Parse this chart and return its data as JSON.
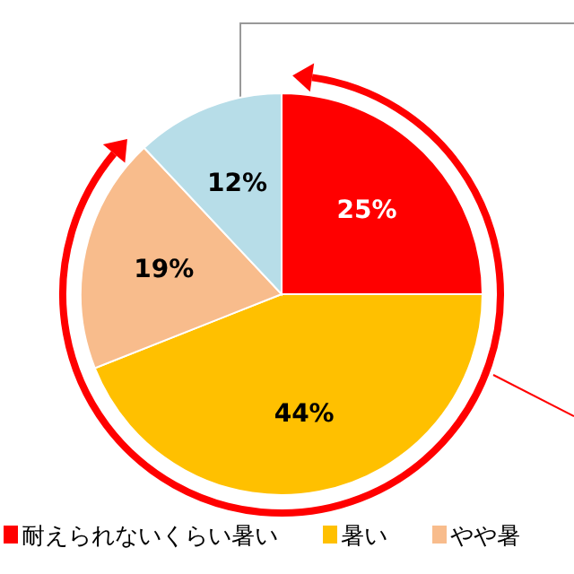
{
  "chart_data": {
    "type": "pie",
    "categories": [
      "耐えられないくらい暑い",
      "暑い",
      "やや暑",
      null
    ],
    "values": [
      25,
      44,
      19,
      12
    ],
    "colors": [
      "#ff0000",
      "#ffc000",
      "#f8bc8c",
      "#b7dde8"
    ],
    "value_labels": [
      "25%",
      "44%",
      "19%",
      "12%"
    ],
    "legend": "bottom"
  }
}
